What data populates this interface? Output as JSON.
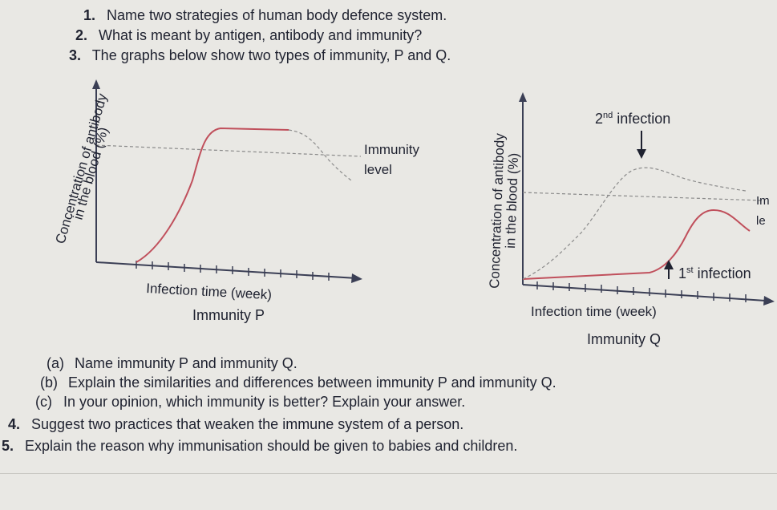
{
  "questions": {
    "q1": {
      "num": "1.",
      "text": "Name two strategies of human body defence system."
    },
    "q2": {
      "num": "2.",
      "text": "What is meant by antigen, antibody and immunity?"
    },
    "q3": {
      "num": "3.",
      "text": "The graphs below show two types of immunity, P and Q."
    },
    "q3a": {
      "num": "(a)",
      "text": "Name immunity P and immunity Q."
    },
    "q3b": {
      "num": "(b)",
      "text": "Explain the similarities and differences between immunity P and immunity Q."
    },
    "q3c": {
      "num": "(c)",
      "text": "In your opinion, which immunity is better? Explain your answer."
    },
    "q4": {
      "num": "4.",
      "text": "Suggest two practices that weaken the immune system of a person."
    },
    "q5": {
      "num": "5.",
      "text": "Explain the reason why immunisation should be given to babies and children."
    }
  },
  "graph_p": {
    "ylabel_line1": "Concentration of antibody",
    "ylabel_line2": "in the blood (%)",
    "xlabel": "Infection time (week)",
    "immunity_label_line1": "Immunity",
    "immunity_label_line2": "level",
    "caption": "Immunity P"
  },
  "graph_q": {
    "ylabel_line1": "Concentration of antibody",
    "ylabel_line2": "in the blood (%)",
    "xlabel": "Infection time (week)",
    "second_infection": "2nd infection",
    "first_infection": "1st infection",
    "immunity_label_line1": "Im",
    "immunity_label_line2": "le",
    "caption": "Immunity Q"
  },
  "colors": {
    "curve": "#c0505c",
    "axis": "#3b3f55",
    "dashed": "#8a8a8a",
    "text": "#1f2230"
  }
}
